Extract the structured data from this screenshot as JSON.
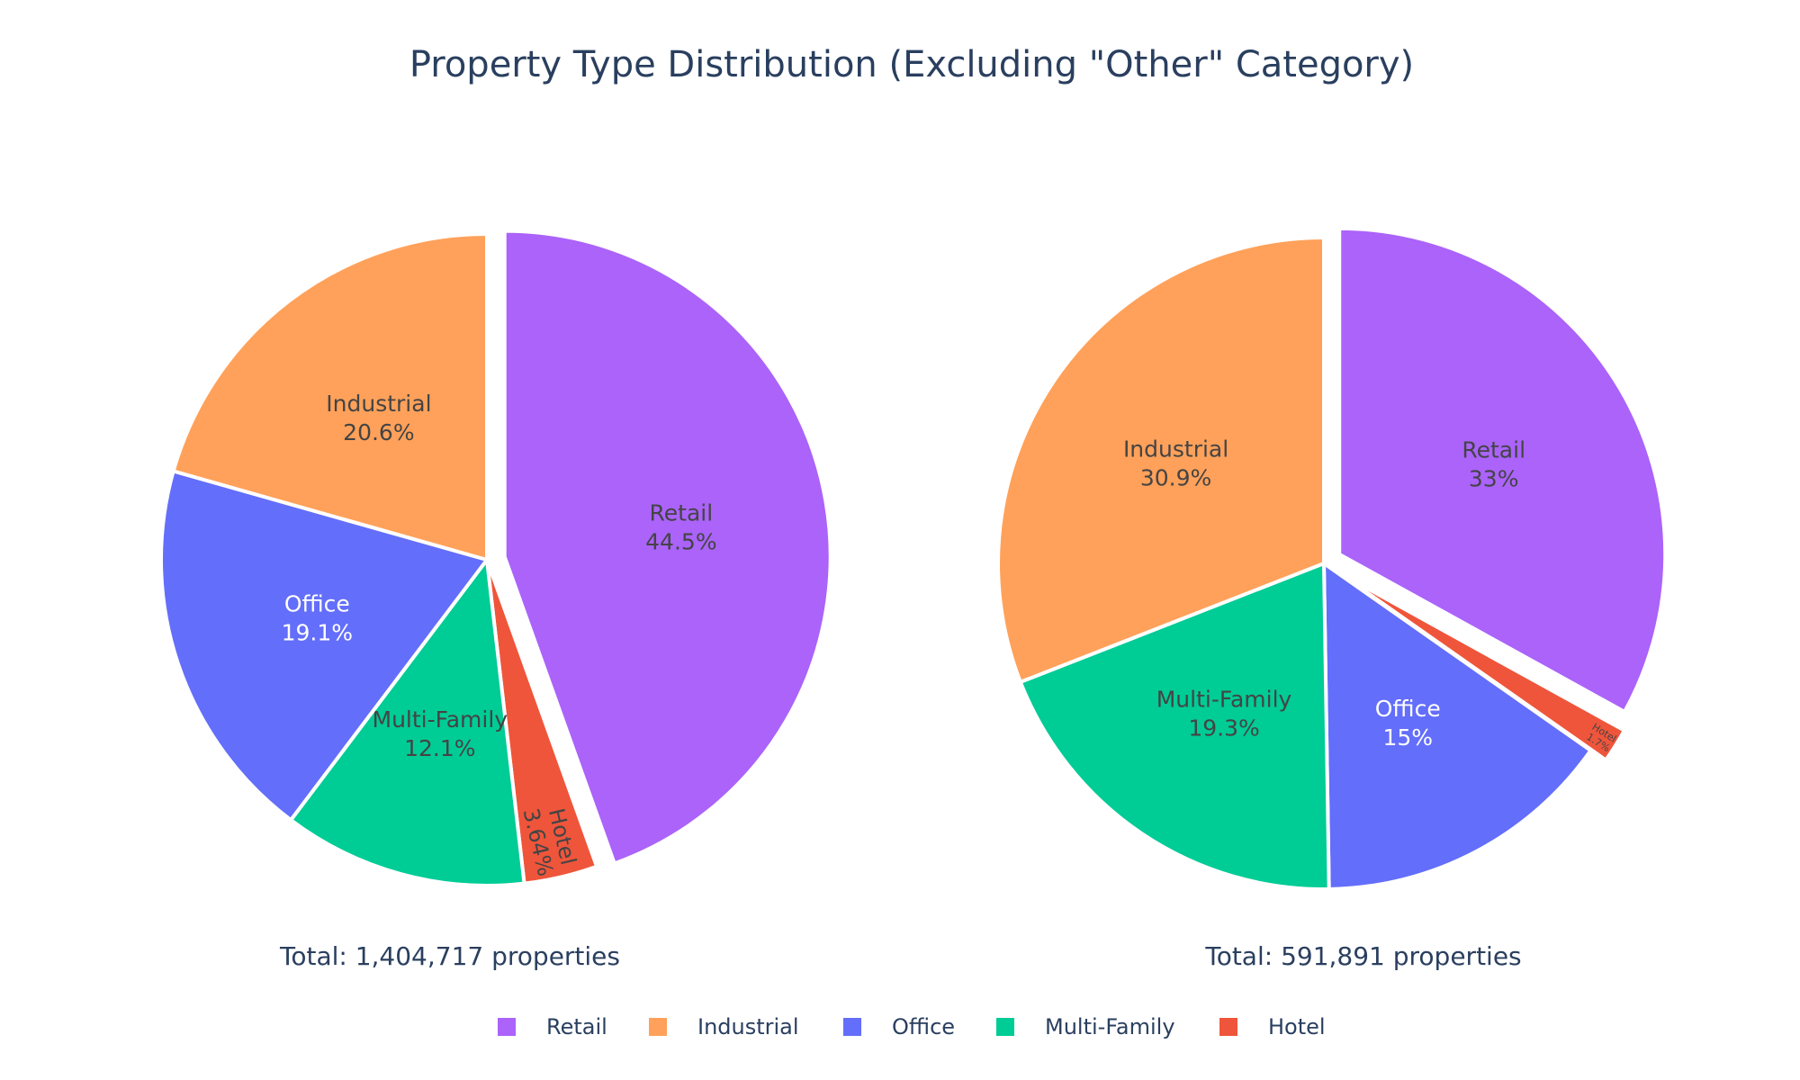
{
  "chart_data": {
    "type": "pie",
    "title": "Property Type Distribution (Excluding \"Other\" Category)",
    "legend_position": "bottom",
    "colors": {
      "Retail": "#ab63fa",
      "Industrial": "#ffa15a",
      "Office": "#636efa",
      "Multi-Family": "#00cc96",
      "Hotel": "#ef553b"
    },
    "legend": [
      "Retail",
      "Industrial",
      "Office",
      "Multi-Family",
      "Hotel"
    ],
    "pies": [
      {
        "annotation": "Total: 1,404,717 properties",
        "slices": [
          {
            "label": "Retail",
            "value": 44.5,
            "text": "44.5%",
            "pulled": true
          },
          {
            "label": "Hotel",
            "value": 3.64,
            "text": "3.64%",
            "pulled": false
          },
          {
            "label": "Multi-Family",
            "value": 12.1,
            "text": "12.1%",
            "pulled": false
          },
          {
            "label": "Office",
            "value": 19.1,
            "text": "19.1%",
            "pulled": false
          },
          {
            "label": "Industrial",
            "value": 20.6,
            "text": "20.6%",
            "pulled": false
          }
        ]
      },
      {
        "annotation": "Total: 591,891 properties",
        "slices": [
          {
            "label": "Retail",
            "value": 33,
            "text": "33%",
            "pulled": true
          },
          {
            "label": "Hotel",
            "value": 1.7,
            "text": "1.7%",
            "pulled": true
          },
          {
            "label": "Office",
            "value": 15,
            "text": "15%",
            "pulled": false
          },
          {
            "label": "Multi-Family",
            "value": 19.3,
            "text": "19.3%",
            "pulled": false
          },
          {
            "label": "Industrial",
            "value": 30.9,
            "text": "30.9%",
            "pulled": false
          }
        ]
      }
    ]
  }
}
